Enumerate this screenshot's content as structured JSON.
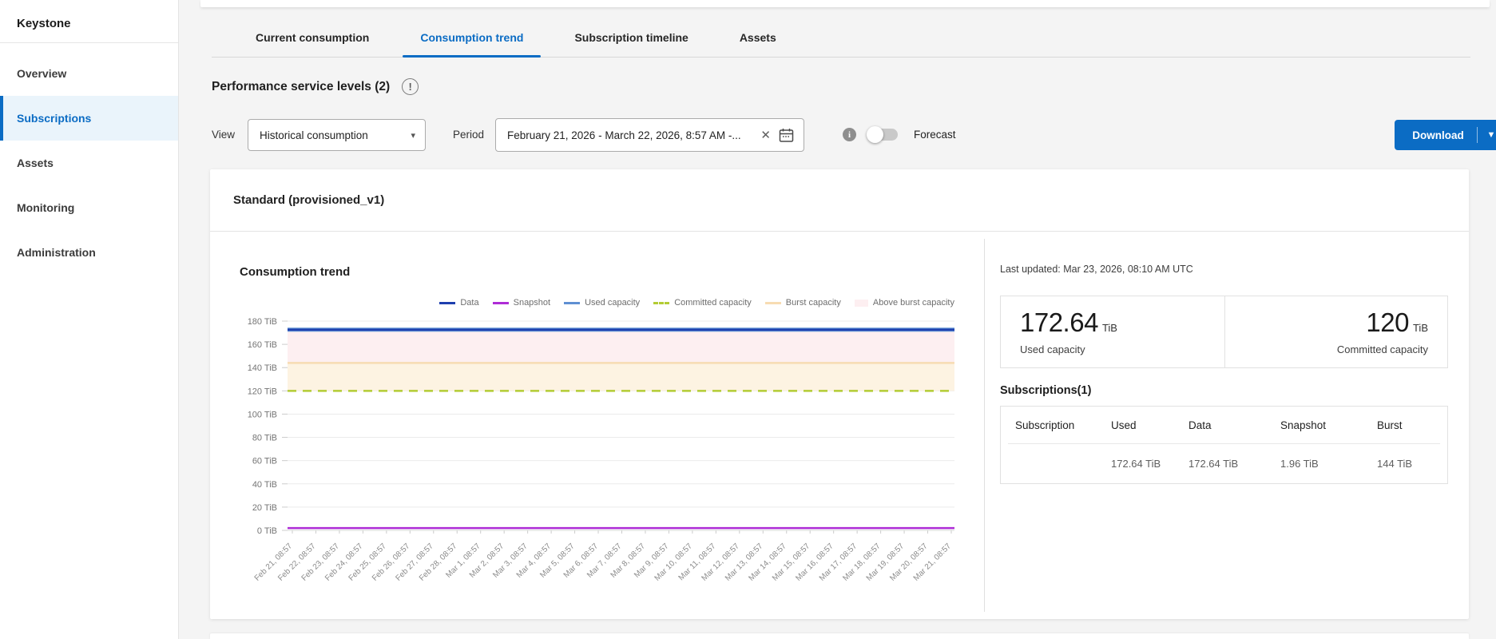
{
  "accent_color": "#0b6cc4",
  "sidebar": {
    "title": "Keystone",
    "items": [
      {
        "label": "Overview",
        "active": false
      },
      {
        "label": "Subscriptions",
        "active": true
      },
      {
        "label": "Assets",
        "active": false
      },
      {
        "label": "Monitoring",
        "active": false
      },
      {
        "label": "Administration",
        "active": false
      }
    ]
  },
  "tabs": [
    {
      "label": "Current consumption",
      "active": false
    },
    {
      "label": "Consumption trend",
      "active": true
    },
    {
      "label": "Subscription timeline",
      "active": false
    },
    {
      "label": "Assets",
      "active": false
    }
  ],
  "page": {
    "section_title": "Performance service levels (2)"
  },
  "filters": {
    "view_label": "View",
    "view_value": "Historical consumption",
    "period_label": "Period",
    "period_value": "February 21, 2026 - March 22, 2026,  8:57 AM -...",
    "forecast_label": "Forecast",
    "download_label": "Download"
  },
  "card": {
    "title": "Standard (provisioned_v1)",
    "chart_title": "Consumption trend"
  },
  "panel": {
    "last_updated": "Last updated: Mar 23, 2026, 08:10 AM UTC",
    "summary": [
      {
        "value": "172.64",
        "unit": "TiB",
        "label": "Used capacity"
      },
      {
        "value": "120",
        "unit": "TiB",
        "label": "Committed capacity"
      }
    ],
    "subscriptions_title": "Subscriptions(1)",
    "table": {
      "columns": [
        "Subscription",
        "Used",
        "Data",
        "Snapshot",
        "Burst"
      ],
      "rows": [
        {
          "subscription": "",
          "redacted": true,
          "used": "172.64 TiB",
          "data": "172.64 TiB",
          "snapshot": "1.96 TiB",
          "burst": "144 TiB"
        }
      ]
    }
  },
  "chart_data": {
    "type": "line",
    "title": "Consumption trend",
    "unit": "TiB",
    "ylim": [
      0,
      180
    ],
    "ytick_step": 20,
    "grid": true,
    "legend_position": "top",
    "x": [
      "Feb 21, 08:57",
      "Feb 22, 08:57",
      "Feb 23, 08:57",
      "Feb 24, 08:57",
      "Feb 25, 08:57",
      "Feb 26, 08:57",
      "Feb 27, 08:57",
      "Feb 28, 08:57",
      "Mar 1, 08:57",
      "Mar 2, 08:57",
      "Mar 3, 08:57",
      "Mar 4, 08:57",
      "Mar 5, 08:57",
      "Mar 6, 08:57",
      "Mar 7, 08:57",
      "Mar 8, 08:57",
      "Mar 9, 08:57",
      "Mar 10, 08:57",
      "Mar 11, 08:57",
      "Mar 12, 08:57",
      "Mar 13, 08:57",
      "Mar 14, 08:57",
      "Mar 15, 08:57",
      "Mar 16, 08:57",
      "Mar 17, 08:57",
      "Mar 18, 08:57",
      "Mar 19, 08:57",
      "Mar 20, 08:57",
      "Mar 21, 08:57"
    ],
    "series": [
      {
        "name": "Data",
        "style": "solid",
        "color": "#1e3fae",
        "width": 2.5,
        "value": 172.64
      },
      {
        "name": "Snapshot",
        "style": "solid",
        "color": "#ae2cd6",
        "width": 2.5,
        "value": 1.96
      },
      {
        "name": "Used capacity",
        "style": "solid",
        "color": "#5f8fd2",
        "width": 5,
        "value": 172.64
      },
      {
        "name": "Committed capacity",
        "style": "dashed",
        "color": "#b3cc34",
        "width": 2.5,
        "value": 120
      },
      {
        "name": "Burst capacity",
        "style": "solid",
        "color": "#f7dcb2",
        "width": 2.5,
        "value": 144
      },
      {
        "name": "Above burst capacity",
        "style": "area",
        "color": "#fdeff1",
        "range": [
          144,
          172.64
        ]
      }
    ],
    "fills": [
      {
        "range": [
          120,
          144
        ],
        "color": "#fdf3e2"
      },
      {
        "range": [
          144,
          172.64
        ],
        "color": "#fdeff1"
      }
    ]
  }
}
